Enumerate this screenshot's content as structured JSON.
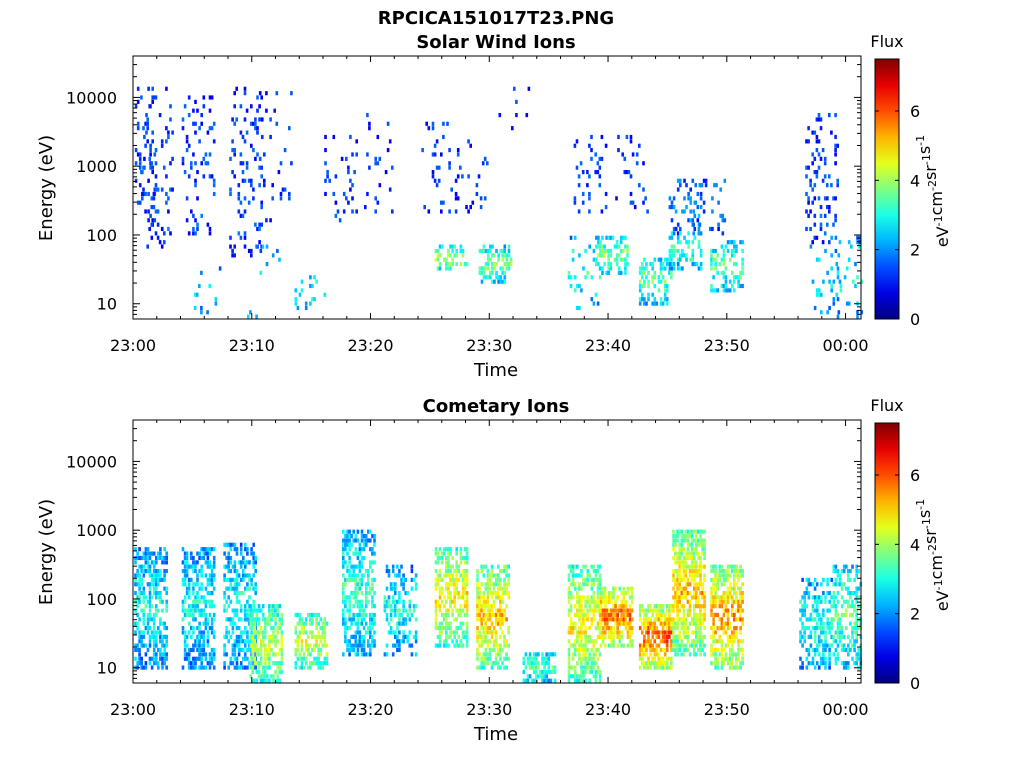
{
  "figure_title": "RPCICA151017T23.PNG",
  "colorbar_label": "Flux",
  "colorbar_unit": "eV-1cm-2sr-1s-1",
  "colorbar_ticks": [
    "0",
    "2",
    "4",
    "6"
  ],
  "chart_data": [
    {
      "type": "heatmap",
      "title": "Solar Wind Ions",
      "xlabel": "Time",
      "ylabel": "Energy (eV)",
      "yscale": "log",
      "ylim": [
        6,
        40000
      ],
      "xlim": [
        "23:00",
        "00:01"
      ],
      "x_ticks": [
        "23:00",
        "23:10",
        "23:20",
        "23:30",
        "23:40",
        "23:50",
        "00:00"
      ],
      "y_ticks": [
        "10",
        "100",
        "1000",
        "10000"
      ],
      "color_range": [
        0,
        7.5
      ],
      "colormap": "jet",
      "grid": false,
      "features": [
        {
          "t": 0.5,
          "e_lo": 100,
          "e_hi": 14000,
          "level": 1.6,
          "density": 0.12
        },
        {
          "t": 2.0,
          "e_lo": 60,
          "e_hi": 14000,
          "level": 1.7,
          "density": 0.12
        },
        {
          "t": 5.5,
          "e_lo": 100,
          "e_hi": 10000,
          "level": 1.7,
          "density": 0.12
        },
        {
          "t": 9.5,
          "e_lo": 50,
          "e_hi": 15000,
          "level": 1.7,
          "density": 0.14
        },
        {
          "t": 12.0,
          "e_lo": 150,
          "e_hi": 15000,
          "level": 1.6,
          "density": 0.08
        },
        {
          "t": 17.5,
          "e_lo": 150,
          "e_hi": 3000,
          "level": 1.6,
          "density": 0.1
        },
        {
          "t": 20.5,
          "e_lo": 200,
          "e_hi": 8000,
          "level": 1.6,
          "density": 0.06
        },
        {
          "t": 25.5,
          "e_lo": 200,
          "e_hi": 8000,
          "level": 1.6,
          "density": 0.08
        },
        {
          "t": 28.5,
          "e_lo": 200,
          "e_hi": 3000,
          "level": 1.6,
          "density": 0.1
        },
        {
          "t": 32.0,
          "e_lo": 3000,
          "e_hi": 18000,
          "level": 1.6,
          "density": 0.05
        },
        {
          "t": 38.5,
          "e_lo": 200,
          "e_hi": 3000,
          "level": 1.7,
          "density": 0.12
        },
        {
          "t": 42.0,
          "e_lo": 200,
          "e_hi": 3000,
          "level": 1.6,
          "density": 0.08
        },
        {
          "t": 46.5,
          "e_lo": 100,
          "e_hi": 700,
          "level": 2.2,
          "density": 0.22
        },
        {
          "t": 48.5,
          "e_lo": 100,
          "e_hi": 700,
          "level": 2.0,
          "density": 0.18
        },
        {
          "t": 58.0,
          "e_lo": 70,
          "e_hi": 6000,
          "level": 1.7,
          "density": 0.16
        },
        {
          "t": 6.0,
          "e_lo": 6,
          "e_hi": 40,
          "level": 2.8,
          "density": 0.05
        },
        {
          "t": 11.0,
          "e_lo": 6,
          "e_hi": 70,
          "level": 3.0,
          "density": 0.07
        },
        {
          "t": 15.0,
          "e_lo": 8,
          "e_hi": 25,
          "level": 3.0,
          "density": 0.12
        },
        {
          "t": 26.8,
          "e_lo": 30,
          "e_hi": 70,
          "level": 4.2,
          "density": 0.45
        },
        {
          "t": 30.5,
          "e_lo": 20,
          "e_hi": 70,
          "level": 3.8,
          "density": 0.4
        },
        {
          "t": 38.0,
          "e_lo": 8,
          "e_hi": 100,
          "level": 3.2,
          "density": 0.12
        },
        {
          "t": 40.3,
          "e_lo": 25,
          "e_hi": 100,
          "level": 3.8,
          "density": 0.45
        },
        {
          "t": 44.0,
          "e_lo": 10,
          "e_hi": 50,
          "level": 3.6,
          "density": 0.45
        },
        {
          "t": 46.5,
          "e_lo": 30,
          "e_hi": 120,
          "level": 3.3,
          "density": 0.45
        },
        {
          "t": 50.0,
          "e_lo": 15,
          "e_hi": 80,
          "level": 3.6,
          "density": 0.45
        },
        {
          "t": 58.2,
          "e_lo": 6,
          "e_hi": 100,
          "level": 2.8,
          "density": 0.12
        },
        {
          "t": 60.2,
          "e_lo": 6,
          "e_hi": 100,
          "level": 2.8,
          "density": 0.12
        }
      ]
    },
    {
      "type": "heatmap",
      "title": "Cometary Ions",
      "xlabel": "Time",
      "ylabel": "Energy (eV)",
      "yscale": "log",
      "ylim": [
        6,
        40000
      ],
      "xlim": [
        "23:00",
        "00:01"
      ],
      "x_ticks": [
        "23:00",
        "23:10",
        "23:20",
        "23:30",
        "23:40",
        "23:50",
        "00:00"
      ],
      "y_ticks": [
        "10",
        "100",
        "1000",
        "10000"
      ],
      "color_range": [
        0,
        7.5
      ],
      "colormap": "jet",
      "grid": false,
      "features": [
        {
          "t": 1.5,
          "e_lo": 10,
          "e_hi": 600,
          "level": 2.9,
          "density": 0.55
        },
        {
          "t": 5.5,
          "e_lo": 10,
          "e_hi": 600,
          "level": 2.9,
          "density": 0.55
        },
        {
          "t": 9.0,
          "e_lo": 10,
          "e_hi": 650,
          "level": 3.0,
          "density": 0.55
        },
        {
          "t": 11.2,
          "e_lo": 6,
          "e_hi": 80,
          "level": 4.4,
          "density": 0.6
        },
        {
          "t": 15.0,
          "e_lo": 10,
          "e_hi": 60,
          "level": 4.5,
          "density": 0.6
        },
        {
          "t": 19.0,
          "e_lo": 15,
          "e_hi": 1000,
          "level": 3.3,
          "density": 0.55
        },
        {
          "t": 22.5,
          "e_lo": 15,
          "e_hi": 300,
          "level": 3.0,
          "density": 0.4
        },
        {
          "t": 26.8,
          "e_lo": 20,
          "e_hi": 600,
          "level": 4.8,
          "density": 0.6
        },
        {
          "t": 30.3,
          "e_lo": 10,
          "e_hi": 300,
          "level": 5.2,
          "density": 0.65
        },
        {
          "t": 34.2,
          "e_lo": 6,
          "e_hi": 18,
          "level": 3.5,
          "density": 0.6
        },
        {
          "t": 38.0,
          "e_lo": 6,
          "e_hi": 300,
          "level": 4.8,
          "density": 0.55
        },
        {
          "t": 40.7,
          "e_lo": 20,
          "e_hi": 150,
          "level": 5.8,
          "density": 0.7
        },
        {
          "t": 44.0,
          "e_lo": 10,
          "e_hi": 80,
          "level": 6.0,
          "density": 0.7
        },
        {
          "t": 46.8,
          "e_lo": 15,
          "e_hi": 1000,
          "level": 5.2,
          "density": 0.7
        },
        {
          "t": 50.0,
          "e_lo": 10,
          "e_hi": 300,
          "level": 5.5,
          "density": 0.7
        },
        {
          "t": 57.5,
          "e_lo": 10,
          "e_hi": 200,
          "level": 3.2,
          "density": 0.45
        },
        {
          "t": 60.3,
          "e_lo": 10,
          "e_hi": 300,
          "level": 3.6,
          "density": 0.5
        }
      ]
    }
  ]
}
